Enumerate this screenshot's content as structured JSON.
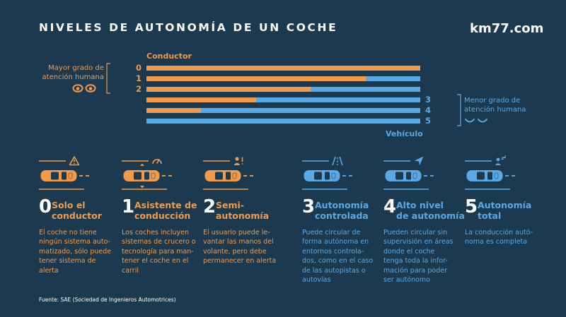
{
  "header": {
    "title": "NIVELES DE AUTONOMÍA DE UN COCHE",
    "brand": "km77.com"
  },
  "colors": {
    "background": "#1b3a4f",
    "orange": "#f29a4a",
    "blue": "#5aa9e6",
    "text": "#ffffff"
  },
  "diagram": {
    "driver_label": "Conductor",
    "vehicle_label": "Vehículo",
    "left_note": [
      "Mayor grado de",
      "atención humana"
    ],
    "right_note": [
      "Menor grado de",
      "atención humana"
    ],
    "left_icon": "eyes-open-icon",
    "right_icon": "eyes-closed-icon",
    "rows": [
      {
        "level": "0",
        "driver_share": 1.0
      },
      {
        "level": "1",
        "driver_share": 0.8
      },
      {
        "level": "2",
        "driver_share": 0.6
      },
      {
        "level": "3",
        "driver_share": 0.4
      },
      {
        "level": "4",
        "driver_share": 0.2
      },
      {
        "level": "5",
        "driver_share": 0.0
      }
    ]
  },
  "levels": [
    {
      "number": "0",
      "title": [
        "Solo el",
        "conductor"
      ],
      "desc": [
        "El coche no tiene",
        "ningún sistema auto-",
        "matizado, sólo puede",
        "tener sistema de",
        "alerta"
      ],
      "color": "orange",
      "icon": "warning-icon"
    },
    {
      "number": "1",
      "title": [
        "Asistente de",
        "conducción"
      ],
      "desc": [
        "Los coches incluyen",
        "sistemas de crucero o",
        "tecnología para man-",
        "tener el coche en el",
        "carril"
      ],
      "color": "orange",
      "icon": "speedometer-icon"
    },
    {
      "number": "2",
      "title": [
        "Semi-",
        "autonomía"
      ],
      "desc": [
        "El usuario puede le-",
        "vantar las manos del",
        "volante, pero debe",
        "permanecer en alerta"
      ],
      "color": "orange",
      "icon": "person-alert-icon"
    },
    {
      "number": "3",
      "title": [
        "Autonomía",
        "controlada"
      ],
      "desc": [
        "Puede circular de",
        "forma autónoma en",
        "entornos controla-",
        "dos, como en el caso",
        "de las autopistas o",
        "autovías"
      ],
      "color": "blue",
      "icon": "highway-icon"
    },
    {
      "number": "4",
      "title": [
        "Alto nivel",
        "de autonomía"
      ],
      "desc": [
        "Pueden circular sin",
        "supervisión en áreas",
        "donde el coche",
        "tenga toda la infor-",
        "mación para poder",
        "ser autónomo"
      ],
      "color": "blue",
      "icon": "navigation-arrow-icon"
    },
    {
      "number": "5",
      "title": [
        "Autonomía",
        "total"
      ],
      "desc": [
        "La conducción autó-",
        "noma es completa"
      ],
      "color": "blue",
      "icon": "person-sleeping-icon"
    }
  ],
  "footer": {
    "source": "Fuente: SAE (Sociedad de Ingenieros Automotrices)"
  }
}
